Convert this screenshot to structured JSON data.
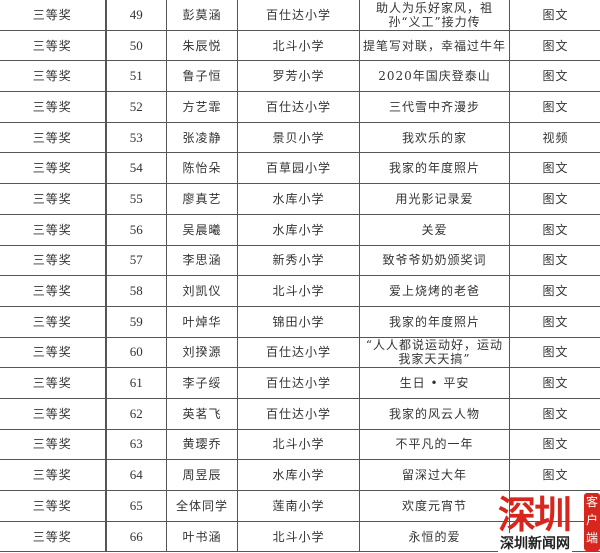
{
  "rows": [
    {
      "award": "三等奖",
      "no": "49",
      "name": "彭莫涵",
      "school": "百仕达小学",
      "title": "助人为乐好家风，祖孙“义工”接力传",
      "type": "图文"
    },
    {
      "award": "三等奖",
      "no": "50",
      "name": "朱辰悦",
      "school": "北斗小学",
      "title": "提笔写对联，幸福过牛年",
      "type": "图文"
    },
    {
      "award": "三等奖",
      "no": "51",
      "name": "鲁子恒",
      "school": "罗芳小学",
      "title": "2020年国庆登泰山",
      "type": "图文"
    },
    {
      "award": "三等奖",
      "no": "52",
      "name": "方艺霏",
      "school": "百仕达小学",
      "title": "三代雪中齐漫步",
      "type": "图文"
    },
    {
      "award": "三等奖",
      "no": "53",
      "name": "张凌静",
      "school": "景贝小学",
      "title": "我欢乐的家",
      "type": "视频"
    },
    {
      "award": "三等奖",
      "no": "54",
      "name": "陈怡朵",
      "school": "百草园小学",
      "title": "我家的年度照片",
      "type": "图文"
    },
    {
      "award": "三等奖",
      "no": "55",
      "name": "廖真艺",
      "school": "水库小学",
      "title": "用光影记录爱",
      "type": "图文"
    },
    {
      "award": "三等奖",
      "no": "56",
      "name": "吴晨曦",
      "school": "水库小学",
      "title": "关爱",
      "type": "图文"
    },
    {
      "award": "三等奖",
      "no": "57",
      "name": "李思涵",
      "school": "新秀小学",
      "title": "致爷爷奶奶颁奖词",
      "type": "图文"
    },
    {
      "award": "三等奖",
      "no": "58",
      "name": "刘凯仪",
      "school": "北斗小学",
      "title": "爱上烧烤的老爸",
      "type": "图文"
    },
    {
      "award": "三等奖",
      "no": "59",
      "name": "叶焯华",
      "school": "锦田小学",
      "title": "我家的年度照片",
      "type": "图文"
    },
    {
      "award": "三等奖",
      "no": "60",
      "name": "刘揆源",
      "school": "百仕达小学",
      "title": "“人人都说运动好，运动我家天天搞”",
      "type": "图文"
    },
    {
      "award": "三等奖",
      "no": "61",
      "name": "李子绥",
      "school": "百仕达小学",
      "title": "生日 • 平安",
      "type": "图文"
    },
    {
      "award": "三等奖",
      "no": "62",
      "name": "英茗飞",
      "school": "百仕达小学",
      "title": "我家的风云人物",
      "type": "图文"
    },
    {
      "award": "三等奖",
      "no": "63",
      "name": "黄璎乔",
      "school": "北斗小学",
      "title": "不平凡的一年",
      "type": "图文"
    },
    {
      "award": "三等奖",
      "no": "64",
      "name": "周昱辰",
      "school": "水库小学",
      "title": "留深过大年",
      "type": "图文"
    },
    {
      "award": "三等奖",
      "no": "65",
      "name": "全体同学",
      "school": "莲南小学",
      "title": "欢度元宵节",
      "type": ""
    },
    {
      "award": "三等奖",
      "no": "66",
      "name": "叶书涵",
      "school": "北斗小学",
      "title": "永恒的爱",
      "type": ""
    }
  ],
  "watermark": {
    "brand": "深圳新闻网",
    "tag": "客户端",
    "mark": "深圳",
    "color": "#d7261e"
  }
}
